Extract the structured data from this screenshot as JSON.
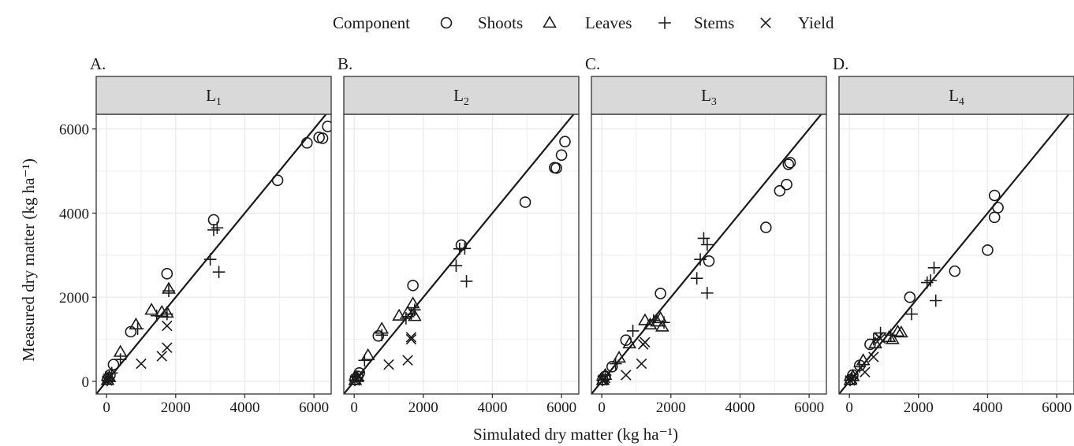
{
  "legend": {
    "title": "Component",
    "entries": [
      {
        "name": "Shoots",
        "symbol": "circle"
      },
      {
        "name": "Leaves",
        "symbol": "triangle"
      },
      {
        "name": "Stems",
        "symbol": "plus"
      },
      {
        "name": "Yield",
        "symbol": "cross"
      }
    ]
  },
  "xlabel": "Simulated dry matter  (kg  ha⁻¹)",
  "ylabel": "Measured dry matter (kg  ha⁻¹)",
  "chart_data": [
    {
      "type": "scatter",
      "panel_tag": "A.",
      "strip_label": "L",
      "strip_sub": "1",
      "xlim": [
        -300,
        6500
      ],
      "ylim": [
        -300,
        6350
      ],
      "xticks": [
        0,
        2000,
        4000,
        6000
      ],
      "yticks": [
        0,
        2000,
        4000,
        6000
      ],
      "reference_line": "1:1",
      "grid": true,
      "series": [
        {
          "name": "Shoots",
          "points": [
            [
              30,
              50
            ],
            [
              100,
              150
            ],
            [
              200,
              400
            ],
            [
              700,
              1180
            ],
            [
              1750,
              2560
            ],
            [
              3100,
              3840
            ],
            [
              4950,
              4780
            ],
            [
              5800,
              5670
            ],
            [
              6150,
              5800
            ],
            [
              6250,
              5780
            ],
            [
              6400,
              6060
            ]
          ]
        },
        {
          "name": "Leaves",
          "points": [
            [
              30,
              30
            ],
            [
              80,
              100
            ],
            [
              400,
              700
            ],
            [
              850,
              1350
            ],
            [
              1300,
              1700
            ],
            [
              1600,
              1650
            ],
            [
              1750,
              1630
            ],
            [
              1800,
              2200
            ]
          ]
        },
        {
          "name": "Stems",
          "points": [
            [
              20,
              30
            ],
            [
              50,
              80
            ],
            [
              150,
              200
            ],
            [
              400,
              520
            ],
            [
              900,
              1250
            ],
            [
              1450,
              1560
            ],
            [
              1750,
              1600
            ],
            [
              1800,
              2150
            ],
            [
              3000,
              2900
            ],
            [
              3100,
              3600
            ],
            [
              3200,
              3650
            ],
            [
              3250,
              2600
            ]
          ]
        },
        {
          "name": "Yield",
          "points": [
            [
              20,
              20
            ],
            [
              50,
              60
            ],
            [
              100,
              120
            ],
            [
              1000,
              420
            ],
            [
              1600,
              600
            ],
            [
              1750,
              800
            ],
            [
              1750,
              1320
            ]
          ]
        }
      ]
    },
    {
      "type": "scatter",
      "panel_tag": "B.",
      "strip_label": "L",
      "strip_sub": "2",
      "xlim": [
        -300,
        6500
      ],
      "ylim": [
        -300,
        6350
      ],
      "xticks": [
        0,
        2000,
        4000,
        6000
      ],
      "yticks": [],
      "reference_line": "1:1",
      "grid": true,
      "series": [
        {
          "name": "Shoots",
          "points": [
            [
              30,
              40
            ],
            [
              100,
              120
            ],
            [
              150,
              200
            ],
            [
              700,
              1080
            ],
            [
              1700,
              2280
            ],
            [
              3100,
              3240
            ],
            [
              4950,
              4260
            ],
            [
              5800,
              5080
            ],
            [
              5850,
              5070
            ],
            [
              6000,
              5380
            ],
            [
              6100,
              5700
            ]
          ]
        },
        {
          "name": "Leaves",
          "points": [
            [
              30,
              30
            ],
            [
              80,
              100
            ],
            [
              400,
              620
            ],
            [
              800,
              1250
            ],
            [
              1300,
              1560
            ],
            [
              1550,
              1640
            ],
            [
              1700,
              1850
            ],
            [
              1750,
              1550
            ]
          ]
        },
        {
          "name": "Stems",
          "points": [
            [
              20,
              30
            ],
            [
              80,
              100
            ],
            [
              300,
              500
            ],
            [
              800,
              1100
            ],
            [
              1500,
              1500
            ],
            [
              1650,
              1600
            ],
            [
              1750,
              1700
            ],
            [
              2950,
              2750
            ],
            [
              3050,
              3150
            ],
            [
              3200,
              3160
            ],
            [
              3250,
              2380
            ]
          ]
        },
        {
          "name": "Yield",
          "points": [
            [
              20,
              20
            ],
            [
              50,
              50
            ],
            [
              150,
              120
            ],
            [
              1000,
              400
            ],
            [
              1550,
              500
            ],
            [
              1650,
              1050
            ],
            [
              1650,
              1000
            ]
          ]
        }
      ]
    },
    {
      "type": "scatter",
      "panel_tag": "C.",
      "strip_label": "L",
      "strip_sub": "3",
      "xlim": [
        -300,
        6500
      ],
      "ylim": [
        -300,
        6350
      ],
      "xticks": [
        0,
        2000,
        4000,
        6000
      ],
      "yticks": [],
      "reference_line": "1:1",
      "grid": true,
      "series": [
        {
          "name": "Shoots",
          "points": [
            [
              30,
              40
            ],
            [
              100,
              120
            ],
            [
              300,
              350
            ],
            [
              700,
              980
            ],
            [
              1700,
              2090
            ],
            [
              3100,
              2860
            ],
            [
              4750,
              3660
            ],
            [
              5150,
              4530
            ],
            [
              5350,
              4680
            ],
            [
              5400,
              5160
            ],
            [
              5450,
              5200
            ]
          ]
        },
        {
          "name": "Leaves",
          "points": [
            [
              30,
              30
            ],
            [
              100,
              150
            ],
            [
              500,
              560
            ],
            [
              800,
              900
            ],
            [
              1250,
              1450
            ],
            [
              1400,
              1350
            ],
            [
              1600,
              1420
            ],
            [
              1700,
              1500
            ],
            [
              1750,
              1300
            ]
          ]
        },
        {
          "name": "Stems",
          "points": [
            [
              20,
              30
            ],
            [
              100,
              150
            ],
            [
              400,
              420
            ],
            [
              900,
              1200
            ],
            [
              1500,
              1450
            ],
            [
              1800,
              1400
            ],
            [
              2750,
              2450
            ],
            [
              2850,
              2900
            ],
            [
              2950,
              3400
            ],
            [
              3050,
              3250
            ],
            [
              3050,
              2100
            ]
          ]
        },
        {
          "name": "Yield",
          "points": [
            [
              20,
              20
            ],
            [
              50,
              40
            ],
            [
              100,
              80
            ],
            [
              700,
              150
            ],
            [
              1150,
              420
            ],
            [
              1200,
              880
            ],
            [
              1250,
              930
            ]
          ]
        }
      ]
    },
    {
      "type": "scatter",
      "panel_tag": "D.",
      "strip_label": "L",
      "strip_sub": "4",
      "xlim": [
        -300,
        6500
      ],
      "ylim": [
        -300,
        6350
      ],
      "xticks": [
        0,
        2000,
        4000,
        6000
      ],
      "yticks": [],
      "reference_line": "1:1",
      "grid": true,
      "series": [
        {
          "name": "Shoots",
          "points": [
            [
              30,
              40
            ],
            [
              100,
              150
            ],
            [
              300,
              380
            ],
            [
              600,
              880
            ],
            [
              1750,
              2000
            ],
            [
              3050,
              2620
            ],
            [
              4000,
              3120
            ],
            [
              4200,
              4420
            ],
            [
              4200,
              3900
            ],
            [
              4300,
              4130
            ]
          ]
        },
        {
          "name": "Leaves",
          "points": [
            [
              30,
              30
            ],
            [
              100,
              120
            ],
            [
              400,
              500
            ],
            [
              750,
              900
            ],
            [
              1150,
              1050
            ],
            [
              1250,
              1000
            ],
            [
              1400,
              1180
            ],
            [
              1500,
              1160
            ]
          ]
        },
        {
          "name": "Stems",
          "points": [
            [
              20,
              30
            ],
            [
              80,
              80
            ],
            [
              300,
              350
            ],
            [
              700,
              1000
            ],
            [
              900,
              1150
            ],
            [
              1200,
              1100
            ],
            [
              1800,
              1600
            ],
            [
              2250,
              2350
            ],
            [
              2350,
              2400
            ],
            [
              2450,
              2700
            ],
            [
              2500,
              1920
            ]
          ]
        },
        {
          "name": "Yield",
          "points": [
            [
              20,
              20
            ],
            [
              80,
              60
            ],
            [
              450,
              220
            ],
            [
              700,
              580
            ],
            [
              850,
              1050
            ],
            [
              900,
              1020
            ]
          ]
        }
      ]
    }
  ]
}
